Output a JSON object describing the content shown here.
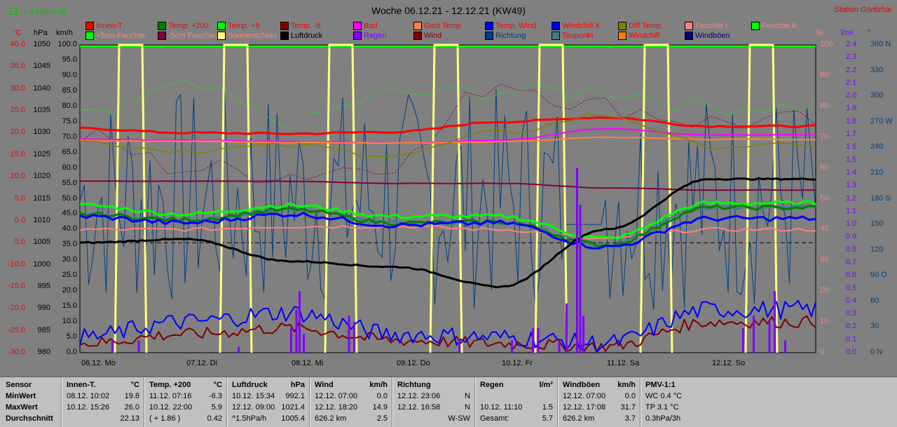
{
  "header": {
    "top_left_label": "-1.4 Monat-Ø",
    "title": "Woche 06.12.21 - 12.12.21 (KW49)",
    "station": "Station Göritzhai"
  },
  "legend": [
    {
      "label": "Innen-T.",
      "color": "#ff0000",
      "text_color": "#ff0000"
    },
    {
      "label": "Temp. +200",
      "color": "#008000",
      "text_color": "#ff0000"
    },
    {
      "label": "Temp. +5",
      "color": "#00ff00",
      "text_color": "#ff0000"
    },
    {
      "label": "Temp. -5",
      "color": "#800000",
      "text_color": "#ff0000"
    },
    {
      "label": "Bad",
      "color": "#ff00ff",
      "text_color": "#ff0000"
    },
    {
      "label": "Gast Temp",
      "color": "#ff8040",
      "text_color": "#ff0000"
    },
    {
      "label": "Temp. Wind",
      "color": "#0000ff",
      "text_color": "#ff0000"
    },
    {
      "label": "Windchill X",
      "color": "#0000ff",
      "text_color": "#ff0000"
    },
    {
      "label": "Diff Temp.",
      "color": "#808000",
      "text_color": "#ff0000"
    },
    {
      "label": "Feuchte I.",
      "color": "#ff8080",
      "text_color": "#ff8080"
    },
    {
      "label": "Feuchte A.",
      "color": "#00ff00",
      "text_color": "#ff8080"
    },
    {
      "label": "+5cm Feuchte",
      "color": "#00ff00",
      "text_color": "#ff8080"
    },
    {
      "label": "-5cm Feuchte",
      "color": "#800040",
      "text_color": "#ff8080"
    },
    {
      "label": "Sonnenschein",
      "color": "#ffff80",
      "text_color": "#ff8080"
    },
    {
      "label": "Luftdruck",
      "color": "#000000",
      "text_color": "#000000"
    },
    {
      "label": "Regen",
      "color": "#8000ff",
      "text_color": "#8000ff"
    },
    {
      "label": "Wind",
      "color": "#800000",
      "text_color": "#800000"
    },
    {
      "label": "Richtung",
      "color": "#004080",
      "text_color": "#004080"
    },
    {
      "label": "Taupunkt",
      "color": "#408080",
      "text_color": "#ff0000"
    },
    {
      "label": "Windchill",
      "color": "#ff8000",
      "text_color": "#ff0000"
    },
    {
      "label": "Windböen",
      "color": "#000080",
      "text_color": "#000080"
    }
  ],
  "axes": {
    "temp": {
      "unit": "°C",
      "ticks": [
        "40.0",
        "35.0",
        "30.0",
        "25.0",
        "20.0",
        "15.0",
        "10.0",
        "5.0",
        "0.0",
        "-5.0",
        "-10.0",
        "-15.0",
        "-20.0",
        "-25.0",
        "-30.0"
      ],
      "color": "#ff0000"
    },
    "press": {
      "unit": "hPa",
      "ticks": [
        "1050",
        "1045",
        "1040",
        "1035",
        "1030",
        "1025",
        "1020",
        "1015",
        "1010",
        "1005",
        "1000",
        "995",
        "990",
        "985",
        "980"
      ],
      "color": "#000000"
    },
    "wind": {
      "unit": "km/h",
      "ticks": [
        "100.0",
        "95.0",
        "90.0",
        "85.0",
        "80.0",
        "75.0",
        "70.0",
        "65.0",
        "60.0",
        "55.0",
        "50.0",
        "45.0",
        "40.0",
        "35.0",
        "30.0",
        "25.0",
        "20.0",
        "15.0",
        "10.0",
        "5.0",
        "0.0"
      ],
      "color": "#000000"
    },
    "hum": {
      "unit": "%",
      "ticks": [
        "100",
        "90",
        "80",
        "70",
        "60",
        "50",
        "40",
        "30",
        "20",
        "10",
        "0"
      ],
      "color": "#ff8080"
    },
    "rain": {
      "unit": "l/m²",
      "ticks": [
        "2.4",
        "2.3",
        "2.2",
        "2.1",
        "2.0",
        "1.9",
        "1.8",
        "1.7",
        "1.6",
        "1.5",
        "1.4",
        "1.3",
        "1.2",
        "1.1",
        "1.0",
        "0.9",
        "0.8",
        "0.7",
        "0.6",
        "0.5",
        "0.4",
        "0.3",
        "0.2",
        "0.1",
        "0.0"
      ],
      "color": "#8000ff"
    },
    "dir": {
      "unit": "°",
      "ticks": [
        "360 N",
        "330",
        "300",
        "270 W",
        "240",
        "210",
        "180 S",
        "150",
        "120",
        "90 O",
        "60",
        "30",
        "0 N"
      ],
      "color": "#004080"
    }
  },
  "days": [
    "06.12. Mo",
    "07.12. Di",
    "08.12. Mi",
    "09.12. Do",
    "10.12. Fr",
    "11.12. Sa",
    "12.12. So"
  ],
  "chart_data": {
    "type": "line",
    "title": "Woche 06.12.21 - 12.12.21 (KW49)",
    "x": [
      "06.12. Mo",
      "07.12. Di",
      "08.12. Mi",
      "09.12. Do",
      "10.12. Fr",
      "11.12. Sa",
      "12.12. So"
    ],
    "series": [
      {
        "name": "Innen-T.",
        "axis": "temp",
        "values": [
          21.0,
          20.0,
          19.8,
          20.2,
          22.5,
          23.5,
          21.5
        ]
      },
      {
        "name": "Temp. +200",
        "axis": "temp",
        "values": [
          1.5,
          0.2,
          2.5,
          -0.5,
          -0.3,
          -5.5,
          3.0
        ]
      },
      {
        "name": "Temp. Wind",
        "axis": "temp",
        "values": [
          1.0,
          -0.5,
          1.5,
          -1.0,
          -0.5,
          -6.0,
          0.5
        ]
      },
      {
        "name": "Luftdruck",
        "axis": "press",
        "values": [
          1005.0,
          1005.8,
          1000.8,
          999.5,
          995.0,
          1008.0,
          1019.5
        ]
      },
      {
        "name": "Feuchte I.",
        "axis": "hum",
        "values": [
          40,
          40,
          41,
          41,
          40,
          37,
          40
        ]
      },
      {
        "name": "-5cm Feuchte",
        "axis": "temp",
        "values": [
          8.0,
          8.0,
          8.0,
          7.5,
          7.5,
          7.0,
          6.8
        ]
      }
    ],
    "sunshine_days": [
      "06.12. Mo",
      "07.12. Di",
      "08.12. Mi",
      "09.12. Do",
      "10.12. Fr",
      "11.12. Sa",
      "12.12. So"
    ],
    "ref_line_temp": -5.0,
    "ylabel": "°C"
  },
  "footer": {
    "sensor": {
      "title": "Sensor",
      "rows": [
        "MinWert",
        "MaxWert",
        "Durchschnitt"
      ]
    },
    "cols": [
      {
        "title": "Innen-T.",
        "unit": "°C",
        "min_time": "08.12.  10:02",
        "min_val": "19.8",
        "max_time": "10.12.  15:26",
        "max_val": "26.0",
        "avg_label": "",
        "avg_val": "22.13"
      },
      {
        "title": "Temp. +200",
        "unit": "°C",
        "min_time": "11.12.  07:16",
        "min_val": "-6.3",
        "max_time": "10.12.  22:00",
        "max_val": "5.9",
        "avg_label": "( + 1.86 )",
        "avg_val": "0.42"
      },
      {
        "title": "Luftdruck",
        "unit": "hPa",
        "min_time": "10.12.  15:34",
        "min_val": "992.1",
        "max_time": "12.12.  09:00",
        "max_val": "1021.4",
        "avg_label": "^1.5hPa/h",
        "avg_val": "1005.4"
      },
      {
        "title": "Wind",
        "unit": "km/h",
        "min_time": "12.12.  07:00",
        "min_val": "0.0",
        "max_time": "12.12.  18:20",
        "max_val": "14.9",
        "avg_label": "626.2 km",
        "avg_val": "2.5"
      },
      {
        "title": "Richtung",
        "unit": "",
        "min_time": "12.12.  23:06",
        "min_val": "N",
        "max_time": "12.12.  16:58",
        "max_val": "N",
        "avg_label": "",
        "avg_val": "W-SW"
      },
      {
        "title": "Regen",
        "unit": "l/m²",
        "min_time": "",
        "min_val": "",
        "max_time": "10.12.  11:10",
        "max_val": "1.5",
        "avg_label": "Gesamt:",
        "avg_val": "5.7"
      },
      {
        "title": "Windböen",
        "unit": "km/h",
        "min_time": "12.12.  07:00",
        "min_val": "0.0",
        "max_time": "12.12.  17:08",
        "max_val": "31.7",
        "avg_label": "626.2 km",
        "avg_val": "3.7"
      },
      {
        "title": "PMV-1:1",
        "unit": "",
        "min_time": "WC 0.4 °C",
        "min_val": "",
        "max_time": "TP 3.1 °C",
        "max_val": "",
        "avg_label": "0.3hPa/3h",
        "avg_val": ""
      }
    ]
  }
}
